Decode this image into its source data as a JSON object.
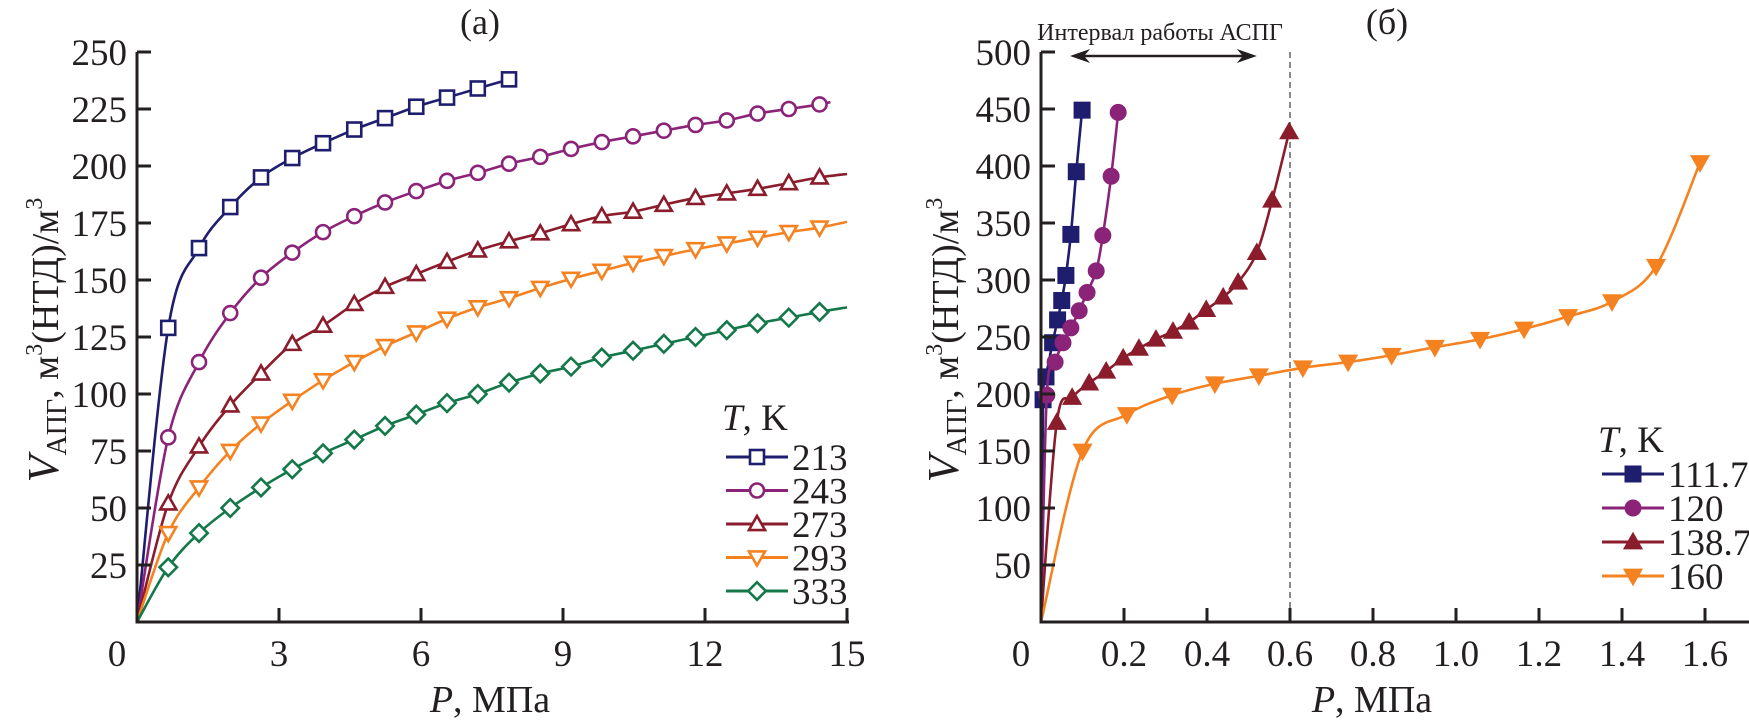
{
  "chart_data": [
    {
      "type": "line",
      "panel_label": "(а)",
      "xlabel": "P, МПа",
      "ylabel": "V_АПГ, м3(НТД)/м3",
      "ylabel_parts": {
        "main": "V",
        "sub": "АПГ",
        "rest1": ", м",
        "sup1": "3",
        "rest2": "(НТД)/м",
        "sup2": "3"
      },
      "xlabel_parts": {
        "var": "P",
        "rest": ", МПа"
      },
      "xlim": [
        0,
        15
      ],
      "ylim": [
        0,
        250
      ],
      "xticks": [
        0,
        3,
        6,
        9,
        12,
        15
      ],
      "yticks": [
        25,
        50,
        75,
        100,
        125,
        150,
        175,
        200,
        225,
        250
      ],
      "grid": false,
      "legend": {
        "title_var": "T",
        "title_rest": ", K",
        "placement": "right"
      },
      "series": [
        {
          "name": "213",
          "color": "#1f1d6e",
          "marker": "square-open",
          "x": [
            0,
            0.66,
            1.31,
            1.97,
            2.62,
            3.28,
            3.93,
            4.59,
            5.24,
            5.9,
            6.55,
            7.2,
            7.86
          ],
          "y": [
            0,
            129,
            164,
            182,
            195,
            203.5,
            210,
            216,
            221,
            226,
            230,
            234,
            238
          ]
        },
        {
          "name": "243",
          "color": "#8b2379",
          "marker": "circle-open",
          "x": [
            0,
            0.66,
            1.31,
            1.97,
            2.62,
            3.28,
            3.93,
            4.59,
            5.24,
            5.9,
            6.55,
            7.2,
            7.86,
            8.52,
            9.17,
            9.82,
            10.48,
            11.13,
            11.8,
            12.46,
            13.11,
            13.77,
            14.42
          ],
          "y": [
            0,
            81,
            114,
            135.5,
            151,
            162,
            171,
            178,
            184,
            189,
            193.5,
            197,
            201,
            204,
            207.5,
            210.5,
            213,
            215.5,
            218,
            220,
            223,
            225,
            227
          ],
          "line_end": [
            14.65,
            228
          ]
        },
        {
          "name": "273",
          "color": "#8b1c2c",
          "marker": "triangle-up-open",
          "x": [
            0,
            0.66,
            1.31,
            1.97,
            2.62,
            3.28,
            3.93,
            4.59,
            5.24,
            5.9,
            6.55,
            7.2,
            7.86,
            8.52,
            9.17,
            9.82,
            10.48,
            11.13,
            11.8,
            12.46,
            13.11,
            13.77,
            14.42
          ],
          "y": [
            0,
            52,
            77,
            95,
            109,
            122,
            130,
            139.5,
            147,
            152.6,
            158,
            163,
            167,
            170.5,
            174.5,
            178,
            180,
            183,
            186,
            188,
            190,
            192.5,
            195
          ],
          "line_end": [
            15,
            196.5
          ]
        },
        {
          "name": "293",
          "color": "#f58220",
          "marker": "triangle-down-open",
          "x": [
            0,
            0.66,
            1.31,
            1.97,
            2.62,
            3.28,
            3.93,
            4.59,
            5.24,
            5.9,
            6.55,
            7.2,
            7.86,
            8.52,
            9.17,
            9.82,
            10.48,
            11.13,
            11.8,
            12.46,
            13.11,
            13.77,
            14.42
          ],
          "y": [
            0,
            39,
            59,
            75,
            87,
            97,
            106,
            114,
            121,
            127,
            133,
            138,
            142,
            146.5,
            150.5,
            154,
            157.5,
            160.5,
            163.5,
            166,
            168.5,
            171,
            173
          ],
          "line_end": [
            15,
            175.5
          ]
        },
        {
          "name": "333",
          "color": "#14784a",
          "marker": "diamond-open",
          "x": [
            0,
            0.66,
            1.31,
            1.97,
            2.62,
            3.28,
            3.93,
            4.59,
            5.24,
            5.9,
            6.55,
            7.2,
            7.86,
            8.52,
            9.17,
            9.82,
            10.48,
            11.13,
            11.8,
            12.46,
            13.11,
            13.77,
            14.42
          ],
          "y": [
            0,
            24,
            39,
            50,
            59,
            67,
            74,
            80,
            86,
            91,
            96,
            100,
            105,
            109,
            112,
            116,
            119,
            122,
            125,
            128,
            131,
            133.5,
            136
          ],
          "line_end": [
            15,
            138
          ]
        }
      ]
    },
    {
      "type": "line",
      "panel_label": "(б)",
      "xlabel": "P, МПа",
      "ylabel": "V_АПГ, м3(НТД)/м3",
      "ylabel_parts": {
        "main": "V",
        "sub": "АПГ",
        "rest1": ", м",
        "sup1": "3",
        "rest2": "(НТД)/м",
        "sup2": "3"
      },
      "xlabel_parts": {
        "var": "P",
        "rest": ", МПа"
      },
      "xlim": [
        0,
        1.7
      ],
      "ylim": [
        0,
        500
      ],
      "xticks": [
        0,
        0.2,
        0.4,
        0.6,
        0.8,
        1.0,
        1.2,
        1.4,
        1.6
      ],
      "xtick_labels": [
        "0",
        "0.2",
        "0.4",
        "0.6",
        "0.8",
        "1.0",
        "1.2",
        "1.4",
        "1.6"
      ],
      "yticks": [
        50,
        100,
        150,
        200,
        250,
        300,
        350,
        400,
        450,
        500
      ],
      "grid": false,
      "annotation": {
        "text": "Интервал работы АСПГ",
        "arrow_from": 0.07,
        "arrow_to": 0.52,
        "dashed_line_at": 0.6
      },
      "legend": {
        "title_var": "T",
        "title_rest": ", K",
        "placement": "right"
      },
      "series": [
        {
          "name": "111.7",
          "color": "#1f1d6e",
          "marker": "square-filled",
          "x": [
            0,
            0.005,
            0.012,
            0.028,
            0.04,
            0.05,
            0.06,
            0.072,
            0.085,
            0.099
          ],
          "y": [
            0,
            195,
            215,
            245,
            265,
            282,
            304,
            340,
            395,
            449
          ]
        },
        {
          "name": "120",
          "color": "#8b2379",
          "marker": "circle-filled",
          "x": [
            0,
            0.014,
            0.034,
            0.053,
            0.072,
            0.092,
            0.111,
            0.133,
            0.149,
            0.169,
            0.186
          ],
          "y": [
            0,
            199,
            228,
            245,
            258,
            273,
            289,
            308,
            339,
            391,
            447
          ]
        },
        {
          "name": "138.7",
          "color": "#8b1c2c",
          "marker": "triangle-up-filled",
          "x": [
            0,
            0.038,
            0.075,
            0.116,
            0.157,
            0.198,
            0.236,
            0.277,
            0.318,
            0.357,
            0.398,
            0.439,
            0.475,
            0.52,
            0.557,
            0.598
          ],
          "y": [
            0,
            175,
            197,
            209.6,
            220,
            231.5,
            240,
            248,
            255,
            263,
            274,
            285,
            298,
            324,
            370,
            430
          ]
        },
        {
          "name": "160",
          "color": "#f58220",
          "marker": "triangle-down-filled",
          "x": [
            0,
            0.1,
            0.207,
            0.316,
            0.419,
            0.525,
            0.631,
            0.74,
            0.845,
            0.949,
            1.058,
            1.164,
            1.27,
            1.376,
            1.482,
            1.588
          ],
          "y": [
            0,
            150,
            182,
            199,
            209,
            216,
            223,
            228,
            234,
            241,
            248,
            257,
            268,
            281,
            312,
            403
          ]
        }
      ]
    }
  ]
}
